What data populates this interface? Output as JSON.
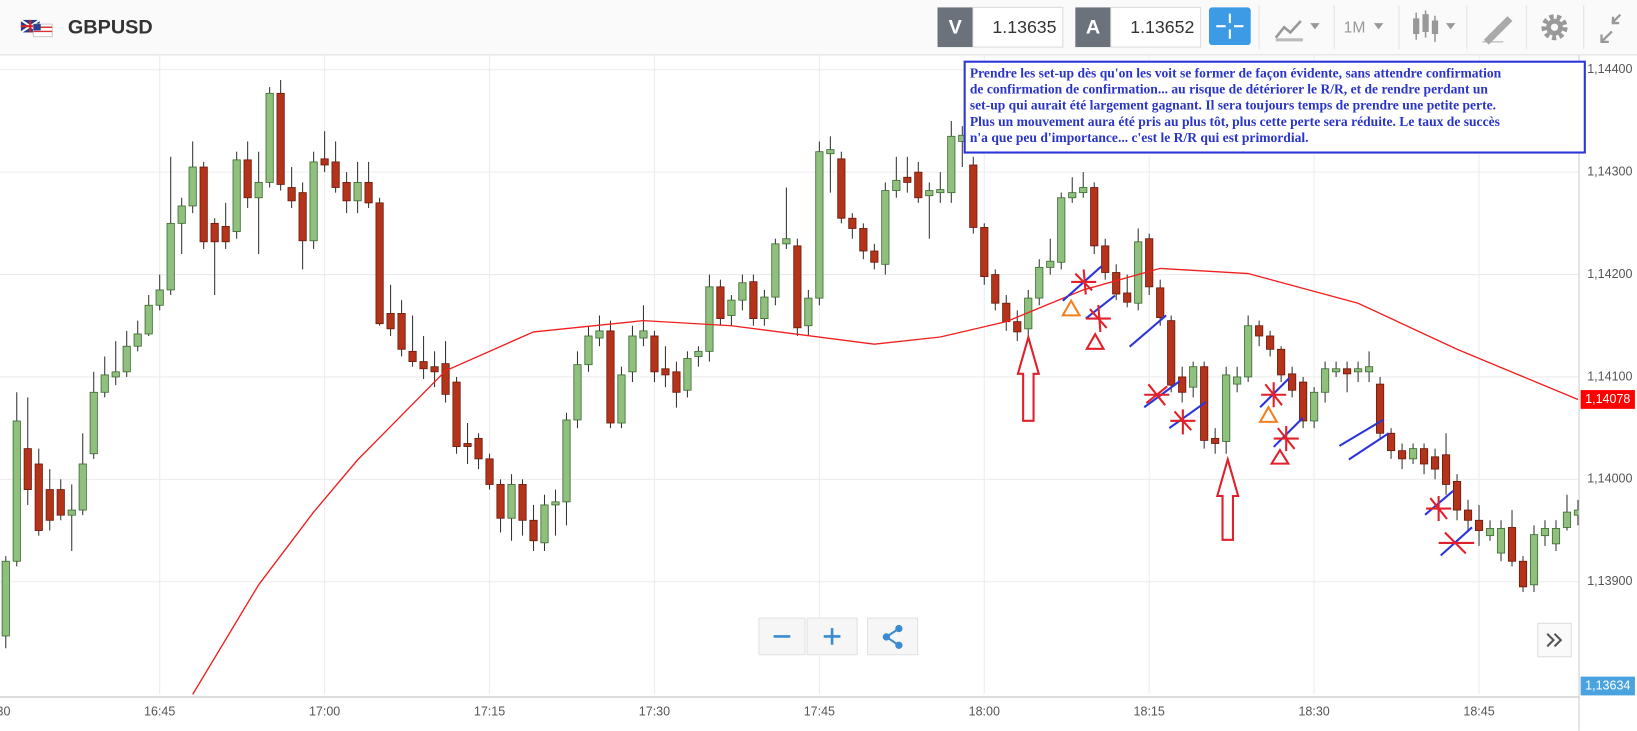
{
  "header": {
    "symbol": "GBPUSD",
    "sell_label": "V",
    "sell_price": "1.13635",
    "buy_label": "A",
    "buy_price": "1.13652",
    "timeframe": "1M"
  },
  "chart_data": {
    "type": "candlestick",
    "x": [
      "16:31",
      "16:32",
      "16:33",
      "16:34",
      "16:35",
      "16:36",
      "16:37",
      "16:38",
      "16:39",
      "16:40",
      "16:41",
      "16:42",
      "16:43",
      "16:44",
      "16:45",
      "16:46",
      "16:47",
      "16:48",
      "16:49",
      "16:50",
      "16:51",
      "16:52",
      "16:53",
      "16:54",
      "16:55",
      "16:56",
      "16:57",
      "16:58",
      "16:59",
      "17:00",
      "17:01",
      "17:02",
      "17:03",
      "17:04",
      "17:05",
      "17:06",
      "17:07",
      "17:08",
      "17:09",
      "17:10",
      "17:11",
      "17:12",
      "17:13",
      "17:14",
      "17:15",
      "17:16",
      "17:17",
      "17:18",
      "17:19",
      "17:20",
      "17:21",
      "17:22",
      "17:23",
      "17:24",
      "17:25",
      "17:26",
      "17:27",
      "17:28",
      "17:29",
      "17:30",
      "17:31",
      "17:32",
      "17:33",
      "17:34",
      "17:35",
      "17:36",
      "17:37",
      "17:38",
      "17:39",
      "17:40",
      "17:41",
      "17:42",
      "17:43",
      "17:44",
      "17:45",
      "17:46",
      "17:47",
      "17:48",
      "17:49",
      "17:50",
      "17:51",
      "17:52",
      "17:53",
      "17:54",
      "17:55",
      "17:56",
      "17:57",
      "17:58",
      "17:59",
      "18:00",
      "18:01",
      "18:02",
      "18:03",
      "18:04",
      "18:05",
      "18:06",
      "18:07",
      "18:08",
      "18:09",
      "18:10",
      "18:11",
      "18:12",
      "18:13",
      "18:14",
      "18:15",
      "18:16",
      "18:17",
      "18:18",
      "18:19",
      "18:20",
      "18:21",
      "18:22",
      "18:23",
      "18:24",
      "18:25",
      "18:26",
      "18:27",
      "18:28",
      "18:29",
      "18:30",
      "18:31",
      "18:32",
      "18:33",
      "18:34",
      "18:35",
      "18:36",
      "18:37",
      "18:38",
      "18:39",
      "18:40",
      "18:41",
      "18:42",
      "18:43",
      "18:44",
      "18:45",
      "18:46",
      "18:47",
      "18:48",
      "18:49",
      "18:50",
      "18:51",
      "18:52",
      "18:53",
      "18:54"
    ],
    "open": [
      1.13847,
      1.1392,
      1.1403,
      1.14015,
      1.1399,
      1.1399,
      1.13965,
      1.1397,
      1.14025,
      1.14085,
      1.141,
      1.14105,
      1.1413,
      1.14142,
      1.1417,
      1.14185,
      1.1425,
      1.14267,
      1.14305,
      1.1425,
      1.14247,
      1.14242,
      1.14312,
      1.14275,
      1.1429,
      1.14377,
      1.14285,
      1.1428,
      1.14233,
      1.14313,
      1.1431,
      1.1429,
      1.14272,
      1.1429,
      1.1427,
      1.14162,
      1.14162,
      1.14125,
      1.14115,
      1.1411,
      1.14113,
      1.14095,
      1.14035,
      1.1404,
      1.1402,
      1.13995,
      1.13962,
      1.13995,
      1.1396,
      1.13938,
      1.13975,
      1.13978,
      1.14058,
      1.14112,
      1.14138,
      1.14145,
      1.14055,
      1.14105,
      1.14138,
      1.1414,
      1.14108,
      1.14105,
      1.14087,
      1.1412,
      1.14125,
      1.14188,
      1.1416,
      1.14175,
      1.14193,
      1.14157,
      1.14178,
      1.1423,
      1.14228,
      1.1415,
      1.14177,
      1.14318,
      1.14313,
      1.14255,
      1.14245,
      1.14223,
      1.1421,
      1.14282,
      1.14295,
      1.143,
      1.14277,
      1.1428,
      1.1428,
      1.1433,
      1.14307,
      1.14246,
      1.142,
      1.14172,
      1.14154,
      1.14147,
      1.14177,
      1.14207,
      1.14212,
      1.14275,
      1.1428,
      1.14285,
      1.14228,
      1.14202,
      1.14182,
      1.14172,
      1.14235,
      1.14187,
      1.14155,
      1.141,
      1.1409,
      1.1411,
      1.1404,
      1.14037,
      1.14093,
      1.141,
      1.1415,
      1.1414,
      1.14127,
      1.14103,
      1.14095,
      1.14057,
      1.14085,
      1.14105,
      1.14108,
      1.14105,
      1.14105,
      1.14093,
      1.14045,
      1.14028,
      1.1402,
      1.1403,
      1.14022,
      1.14024,
      1.13998,
      1.1397,
      1.1396,
      1.13945,
      1.13928,
      1.13953,
      1.1392,
      1.13897,
      1.13945,
      1.13937,
      1.13953,
      1.13965
    ],
    "high": [
      1.13925,
      1.14085,
      1.1408,
      1.1403,
      1.1401,
      1.14,
      1.13995,
      1.14045,
      1.14105,
      1.1412,
      1.14135,
      1.14145,
      1.14155,
      1.1418,
      1.142,
      1.14315,
      1.14275,
      1.1433,
      1.1431,
      1.14255,
      1.1427,
      1.1432,
      1.1433,
      1.1432,
      1.14383,
      1.1439,
      1.14305,
      1.1429,
      1.1432,
      1.1434,
      1.1433,
      1.143,
      1.1431,
      1.1431,
      1.14275,
      1.1419,
      1.14175,
      1.1416,
      1.1414,
      1.14125,
      1.14135,
      1.141,
      1.14055,
      1.14045,
      1.14025,
      1.14,
      1.14005,
      1.14,
      1.13975,
      1.13985,
      1.1399,
      1.14065,
      1.14125,
      1.1415,
      1.1416,
      1.14155,
      1.1411,
      1.1415,
      1.1417,
      1.14145,
      1.1413,
      1.14115,
      1.14125,
      1.1413,
      1.142,
      1.14195,
      1.1418,
      1.142,
      1.142,
      1.14185,
      1.14235,
      1.14285,
      1.14235,
      1.14185,
      1.1433,
      1.14335,
      1.1432,
      1.1426,
      1.1425,
      1.1423,
      1.1429,
      1.14315,
      1.14315,
      1.1431,
      1.1429,
      1.143,
      1.1435,
      1.14345,
      1.14315,
      1.1425,
      1.14205,
      1.1418,
      1.14165,
      1.14185,
      1.14215,
      1.14235,
      1.1428,
      1.14295,
      1.143,
      1.1429,
      1.14235,
      1.1421,
      1.142,
      1.14245,
      1.1424,
      1.14195,
      1.1416,
      1.1411,
      1.14115,
      1.14115,
      1.1405,
      1.1411,
      1.1411,
      1.1416,
      1.14155,
      1.14145,
      1.1413,
      1.1411,
      1.141,
      1.1409,
      1.14115,
      1.14115,
      1.14115,
      1.14115,
      1.14125,
      1.141,
      1.1405,
      1.14035,
      1.14035,
      1.14035,
      1.1403,
      1.14045,
      1.14005,
      1.1398,
      1.13975,
      1.1396,
      1.1396,
      1.1397,
      1.13925,
      1.13955,
      1.1396,
      1.1396,
      1.13985,
      1.1398
    ],
    "low": [
      1.13835,
      1.13915,
      1.13975,
      1.13945,
      1.1395,
      1.1396,
      1.1393,
      1.13965,
      1.1402,
      1.1408,
      1.14092,
      1.141,
      1.14125,
      1.1414,
      1.14165,
      1.1418,
      1.1422,
      1.1426,
      1.14225,
      1.1418,
      1.14225,
      1.14235,
      1.14265,
      1.1422,
      1.14285,
      1.14282,
      1.14265,
      1.14205,
      1.14225,
      1.143,
      1.1428,
      1.1426,
      1.1426,
      1.14265,
      1.1415,
      1.1414,
      1.1412,
      1.1411,
      1.14098,
      1.1409,
      1.14075,
      1.14025,
      1.14015,
      1.1401,
      1.1399,
      1.13948,
      1.1394,
      1.13945,
      1.1393,
      1.1393,
      1.13945,
      1.13955,
      1.1405,
      1.14105,
      1.1413,
      1.1405,
      1.1405,
      1.14095,
      1.1413,
      1.14095,
      1.1409,
      1.1407,
      1.1408,
      1.1411,
      1.14115,
      1.1415,
      1.1415,
      1.14165,
      1.1415,
      1.1415,
      1.1417,
      1.14225,
      1.1414,
      1.1414,
      1.1417,
      1.1428,
      1.1425,
      1.14235,
      1.14215,
      1.14205,
      1.142,
      1.14275,
      1.1428,
      1.1427,
      1.14235,
      1.1427,
      1.1427,
      1.14305,
      1.1424,
      1.1419,
      1.14165,
      1.14145,
      1.14135,
      1.1414,
      1.1417,
      1.142,
      1.14205,
      1.1427,
      1.14275,
      1.1422,
      1.14195,
      1.14175,
      1.14168,
      1.14165,
      1.1418,
      1.1415,
      1.14085,
      1.14075,
      1.1408,
      1.1403,
      1.14025,
      1.14025,
      1.14085,
      1.14095,
      1.1413,
      1.1412,
      1.14095,
      1.1408,
      1.1405,
      1.1405,
      1.14075,
      1.141,
      1.14085,
      1.14095,
      1.14095,
      1.1404,
      1.1402,
      1.1401,
      1.14015,
      1.14005,
      1.14,
      1.13985,
      1.1396,
      1.1395,
      1.13935,
      1.1394,
      1.1392,
      1.13915,
      1.1389,
      1.1389,
      1.13935,
      1.1393,
      1.1395,
      1.13955
    ],
    "close": [
      1.1392,
      1.14057,
      1.1399,
      1.1395,
      1.1396,
      1.13965,
      1.1397,
      1.14015,
      1.14085,
      1.14102,
      1.14105,
      1.1413,
      1.14142,
      1.1417,
      1.14185,
      1.1425,
      1.14267,
      1.14305,
      1.14232,
      1.14232,
      1.14232,
      1.14312,
      1.14275,
      1.1429,
      1.14377,
      1.14288,
      1.14272,
      1.14233,
      1.1431,
      1.14307,
      1.14285,
      1.14272,
      1.1429,
      1.1427,
      1.14152,
      1.14147,
      1.14127,
      1.14115,
      1.14108,
      1.14105,
      1.14083,
      1.14032,
      1.14032,
      1.1402,
      1.13995,
      1.13962,
      1.13995,
      1.1396,
      1.1394,
      1.13975,
      1.13978,
      1.14058,
      1.14112,
      1.1414,
      1.14145,
      1.14055,
      1.14102,
      1.1414,
      1.14145,
      1.14105,
      1.14102,
      1.14085,
      1.14118,
      1.14125,
      1.14188,
      1.14157,
      1.14175,
      1.14192,
      1.14157,
      1.14178,
      1.1423,
      1.14235,
      1.14148,
      1.14177,
      1.1432,
      1.14322,
      1.14255,
      1.14245,
      1.14223,
      1.14212,
      1.14282,
      1.14292,
      1.1429,
      1.14275,
      1.14282,
      1.14283,
      1.14335,
      1.14336,
      1.14246,
      1.14198,
      1.14172,
      1.14154,
      1.14144,
      1.14177,
      1.14207,
      1.14213,
      1.14275,
      1.1428,
      1.14285,
      1.14228,
      1.14202,
      1.14181,
      1.14173,
      1.14232,
      1.14188,
      1.14158,
      1.14092,
      1.14085,
      1.1411,
      1.14038,
      1.14035,
      1.14102,
      1.141,
      1.1415,
      1.1414,
      1.14127,
      1.14102,
      1.14087,
      1.14057,
      1.14085,
      1.14108,
      1.14108,
      1.14103,
      1.14108,
      1.1411,
      1.14045,
      1.14028,
      1.1402,
      1.1403,
      1.14015,
      1.1401,
      1.13995,
      1.1397,
      1.1396,
      1.1395,
      1.13952,
      1.13952,
      1.1392,
      1.13895,
      1.13946,
      1.13952,
      1.13952,
      1.13968,
      1.1397
    ],
    "up_color": "#8fc07e",
    "down_color": "#b5331a",
    "moving_average": {
      "color": "#f02020",
      "x": [
        "16:48",
        "16:54",
        "16:59",
        "17:03",
        "17:11",
        "17:19",
        "17:29",
        "17:37",
        "17:50",
        "17:56",
        "18:02",
        "18:09",
        "18:16",
        "18:24",
        "18:34",
        "18:43",
        "18:54"
      ],
      "values": [
        1.1379,
        1.13897,
        1.13968,
        1.14019,
        1.14106,
        1.14144,
        1.14155,
        1.1415,
        1.14132,
        1.14139,
        1.14154,
        1.14185,
        1.14206,
        1.14201,
        1.14172,
        1.14127,
        1.14078
      ],
      "value_labels": [
        null,
        null,
        null,
        null,
        null,
        null,
        null,
        null,
        null,
        null,
        null,
        null,
        null,
        null,
        null,
        null,
        "1,14078"
      ]
    },
    "price_marker_label": "1,13634",
    "xlim": [
      "16:30",
      "18:55"
    ],
    "xticks": [
      "16:30",
      "16:45",
      "17:00",
      "17:15",
      "17:30",
      "17:45",
      "18:00",
      "18:15",
      "18:30",
      "18:45"
    ],
    "ylim": [
      1.1379,
      1.14414
    ],
    "yticks": [
      {
        "value": 1.139,
        "label": "1,13900"
      },
      {
        "value": 1.14,
        "label": "1,14000"
      },
      {
        "value": 1.141,
        "label": "1,14100"
      },
      {
        "value": 1.142,
        "label": "1,14200"
      },
      {
        "value": 1.143,
        "label": "1,14300"
      },
      {
        "value": 1.144,
        "label": "1,14400"
      }
    ],
    "grid": true,
    "annotation_lines": [
      "Prendre les set-up dès qu'on les voit se former de façon évidente, sans attendre confirmation",
      "de confirmation de confirmation... au risque de détériorer le R/R, et de rendre perdant un",
      "set-up qui aurait été largement gagnant. Il sera toujours temps de prendre une petite perte.",
      "Plus un mouvement aura été pris au plus tôt, plus cette perte sera réduite. Le taux de succès",
      "n'a que peu d'importance... c'est le R/R qui est primordial."
    ]
  }
}
